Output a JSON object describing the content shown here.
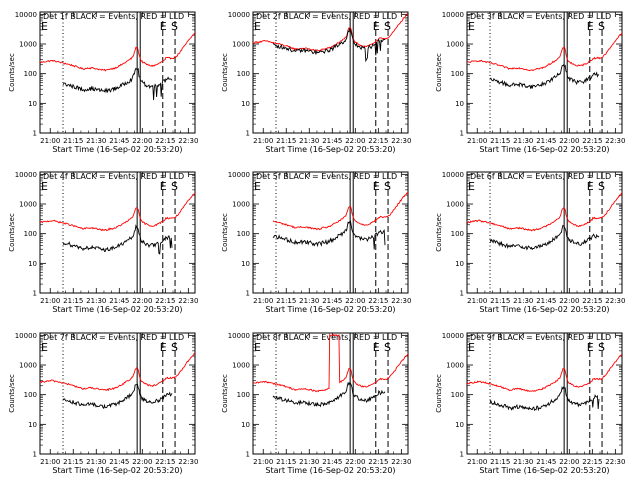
{
  "chart_data": {
    "type": "line",
    "start_label": "Start Time (16-Sep-02 20:53:20)",
    "ylabel": "Counts/sec",
    "title_tail": "BLACK = Events, RED = LLD",
    "xticks": [
      "21:00",
      "21:15",
      "21:30",
      "21:45",
      "22:00",
      "22:15",
      "22:30"
    ],
    "yticks": [
      "1",
      "10",
      "100",
      "1000",
      "10000"
    ],
    "ylim": [
      1,
      12000
    ],
    "yscale": "log",
    "x_unit": "minutes after 20:53:20",
    "xlim": [
      0,
      101
    ],
    "markers": {
      "dotted": 15,
      "solid": [
        63.3,
        65.3
      ],
      "dashed": [
        80,
        88
      ],
      "E_label": "E",
      "S_label": "S"
    },
    "series_colors": {
      "events": "#000000",
      "lld": "#ff0000"
    },
    "panels": [
      {
        "title": "Det 1f",
        "red_base": 240,
        "black_ratio": 0.2,
        "black_start": 15,
        "red_start": 0,
        "spikes": []
      },
      {
        "title": "Det 2f",
        "red_base": 1100,
        "black_ratio": 0.85,
        "black_start": 13,
        "red_start": 0,
        "spikes": []
      },
      {
        "title": "Det 3f",
        "red_base": 240,
        "black_ratio": 0.28,
        "black_start": 15,
        "red_start": 0,
        "spikes": []
      },
      {
        "title": "Det 4f",
        "red_base": 240,
        "black_ratio": 0.22,
        "black_start": 15,
        "red_start": 0,
        "spikes": []
      },
      {
        "title": "Det 5f",
        "red_base": 260,
        "black_ratio": 0.32,
        "black_start": 13,
        "red_start": 13,
        "spikes": []
      },
      {
        "title": "Det 6f",
        "red_base": 240,
        "black_ratio": 0.25,
        "black_start": 15,
        "red_start": 0,
        "spikes": []
      },
      {
        "title": "Det 7f",
        "red_base": 260,
        "black_ratio": 0.28,
        "black_start": 15,
        "red_start": 0,
        "spikes": []
      },
      {
        "title": "Det 8f",
        "red_base": 240,
        "black_ratio": 0.35,
        "black_start": 13,
        "red_start": 0,
        "spikes": [
          [
            50,
            56,
            10000
          ]
        ]
      },
      {
        "title": "Det 9f",
        "red_base": 240,
        "black_ratio": 0.25,
        "black_start": 15,
        "red_start": 0,
        "spikes": []
      }
    ]
  }
}
